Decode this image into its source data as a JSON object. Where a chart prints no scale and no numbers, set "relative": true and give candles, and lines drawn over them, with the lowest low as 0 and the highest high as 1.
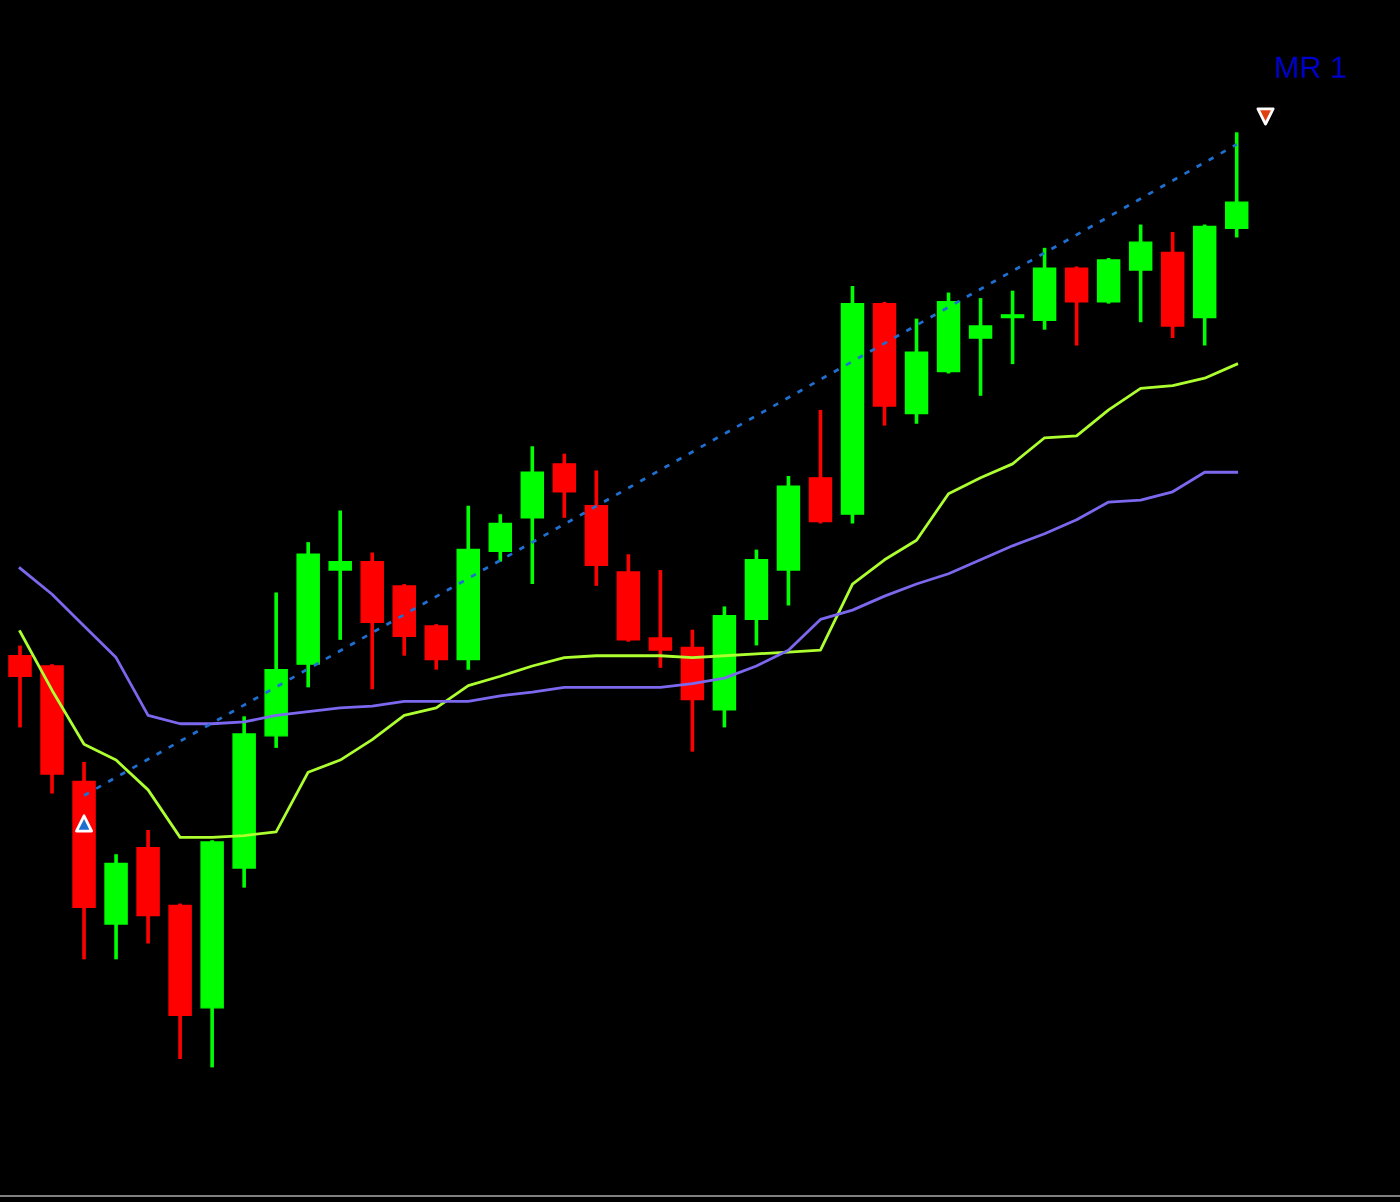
{
  "chart_data": {
    "type": "candlestick",
    "relative": true,
    "grid": false,
    "legend": false,
    "categories": [
      null,
      null,
      null,
      null,
      null,
      null,
      null,
      null,
      null,
      null,
      null,
      null,
      null,
      null,
      null,
      null,
      null,
      null,
      null,
      null,
      null,
      null,
      null,
      null,
      null,
      null,
      null,
      null,
      null,
      null,
      null,
      null,
      null,
      null,
      null,
      null,
      null,
      null,
      null
    ],
    "ohlc": [
      [
        0.44,
        0.449,
        0.365,
        0.418
      ],
      [
        0.429,
        0.429,
        0.294,
        0.313
      ],
      [
        0.305,
        0.324,
        0.116,
        0.17
      ],
      [
        0.152,
        0.225,
        0.116,
        0.217
      ],
      [
        0.234,
        0.251,
        0.133,
        0.161
      ],
      [
        0.172,
        0.172,
        0.009,
        0.054
      ],
      [
        0.062,
        0.24,
        0,
        0.24
      ],
      [
        0.212,
        0.373,
        0.193,
        0.356
      ],
      [
        0.354,
        0.506,
        0.343,
        0.425
      ],
      [
        0.431,
        0.56,
        0.408,
        0.549
      ],
      [
        0.532,
        0.594,
        0.459,
        0.541
      ],
      [
        0.541,
        0.549,
        0.406,
        0.476
      ],
      [
        0.515,
        0.515,
        0.442,
        0.461
      ],
      [
        0.472,
        0.472,
        0.427,
        0.436
      ],
      [
        0.436,
        0.599,
        0.427,
        0.554
      ],
      [
        0.552,
        0.59,
        0.543,
        0.582
      ],
      [
        0.588,
        0.663,
        0.519,
        0.637
      ],
      [
        0.646,
        0.655,
        0.59,
        0.616
      ],
      [
        0.601,
        0.637,
        0.517,
        0.537
      ],
      [
        0.53,
        0.547,
        0.457,
        0.457
      ],
      [
        0.459,
        0.53,
        0.429,
        0.446
      ],
      [
        0.449,
        0.466,
        0.339,
        0.393
      ],
      [
        0.382,
        0.491,
        0.365,
        0.483
      ],
      [
        0.479,
        0.552,
        0.453,
        0.543
      ],
      [
        0.532,
        0.631,
        0.496,
        0.622
      ],
      [
        0.631,
        0.702,
        0.584,
        0.584
      ],
      [
        0.592,
        0.835,
        0.584,
        0.818
      ],
      [
        0.818,
        0.818,
        0.689,
        0.708
      ],
      [
        0.7,
        0.8,
        0.691,
        0.766
      ],
      [
        0.745,
        0.828,
        0.745,
        0.82
      ],
      [
        0.781,
        0.822,
        0.721,
        0.794
      ],
      [
        0.803,
        0.83,
        0.755,
        0.803
      ],
      [
        0.8,
        0.876,
        0.792,
        0.856
      ],
      [
        0.856,
        0.856,
        0.775,
        0.82
      ],
      [
        0.82,
        0.865,
        0.82,
        0.865
      ],
      [
        0.854,
        0.901,
        0.8,
        0.884
      ],
      [
        0.873,
        0.893,
        0.783,
        0.794
      ],
      [
        0.803,
        0.901,
        0.775,
        0.901
      ],
      [
        0.899,
        1,
        0.891,
        0.927
      ]
    ],
    "colors": [
      "#ff0000",
      "#ff0000",
      "#ff0000",
      "#00ff00",
      "#ff0000",
      "#ff0000",
      "#00ff00",
      "#00ff00",
      "#00ff00",
      "#00ff00",
      "#00ff00",
      "#ff0000",
      "#ff0000",
      "#ff0000",
      "#00ff00",
      "#00ff00",
      "#00ff00",
      "#ff0000",
      "#ff0000",
      "#ff0000",
      "#ff0000",
      "#ff0000",
      "#00ff00",
      "#00ff00",
      "#00ff00",
      "#ff0000",
      "#00ff00",
      "#ff0000",
      "#00ff00",
      "#00ff00",
      "#00ff00",
      "#00ff00",
      "#00ff00",
      "#ff0000",
      "#00ff00",
      "#00ff00",
      "#ff0000",
      "#00ff00",
      "#00ff00"
    ],
    "series": [
      {
        "type": "line",
        "color": "#adff2f",
        "line_style": "solid",
        "values": [
          0.466,
          0.403,
          0.345,
          0.328,
          0.296,
          0.245,
          0.245,
          0.247,
          0.251,
          0.315,
          0.328,
          0.35,
          0.376,
          0.384,
          0.408,
          0.418,
          0.429,
          0.438,
          0.44,
          0.44,
          0.44,
          0.438,
          0.44,
          0.442,
          0.444,
          0.446,
          0.517,
          0.543,
          0.564,
          0.614,
          0.631,
          0.646,
          0.674,
          0.676,
          0.704,
          0.727,
          0.73,
          0.738,
          0.753
        ]
      },
      {
        "type": "line",
        "color": "#7b68ee",
        "line_style": "solid",
        "values": [
          0.534,
          0.506,
          0.472,
          0.438,
          0.376,
          0.367,
          0.367,
          0.369,
          0.376,
          0.38,
          0.384,
          0.386,
          0.391,
          0.391,
          0.391,
          0.397,
          0.401,
          0.406,
          0.406,
          0.406,
          0.406,
          0.41,
          0.416,
          0.429,
          0.446,
          0.479,
          0.489,
          0.504,
          0.517,
          0.528,
          0.543,
          0.558,
          0.571,
          0.586,
          0.605,
          0.607,
          0.616,
          0.637,
          0.637
        ]
      },
      {
        "type": "line",
        "color": "#1e6fd0",
        "line_style": "dashed",
        "values": [
          null,
          null,
          0.29,
          null,
          null,
          null,
          null,
          null,
          null,
          null,
          null,
          null,
          null,
          null,
          null,
          null,
          null,
          null,
          null,
          null,
          null,
          null,
          null,
          null,
          null,
          null,
          null,
          null,
          null,
          null,
          null,
          null,
          null,
          null,
          null,
          null,
          null,
          null,
          0.989
        ]
      }
    ],
    "annotations": [
      "MR 1"
    ]
  }
}
